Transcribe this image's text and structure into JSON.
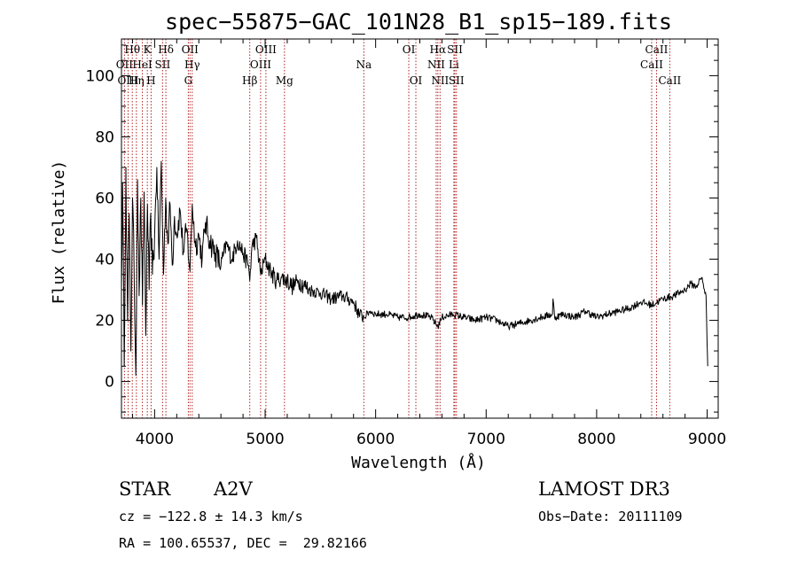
{
  "chart_data": {
    "type": "line",
    "title": "spec−55875−GAC_101N28_B1_sp15−189.fits",
    "xlabel": "Wavelength (Å)",
    "ylabel": "Flux (relative)",
    "xlim": [
      3700,
      9100
    ],
    "ylim": [
      -12,
      112
    ],
    "xticks": [
      4000,
      5000,
      6000,
      7000,
      8000,
      9000
    ],
    "yticks": [
      0,
      20,
      40,
      60,
      80,
      100
    ],
    "series": [
      {
        "name": "flux",
        "x": [
          3700,
          3710,
          3725,
          3740,
          3755,
          3770,
          3785,
          3800,
          3815,
          3830,
          3845,
          3860,
          3875,
          3890,
          3905,
          3920,
          3935,
          3950,
          3965,
          3980,
          4000,
          4020,
          4040,
          4060,
          4080,
          4100,
          4120,
          4140,
          4160,
          4180,
          4200,
          4230,
          4260,
          4290,
          4320,
          4340,
          4370,
          4400,
          4430,
          4460,
          4500,
          4550,
          4600,
          4650,
          4700,
          4750,
          4800,
          4850,
          4861,
          4880,
          4920,
          4960,
          5000,
          5050,
          5100,
          5150,
          5200,
          5250,
          5300,
          5400,
          5500,
          5600,
          5700,
          5800,
          5850,
          5893,
          5950,
          6000,
          6100,
          6200,
          6300,
          6400,
          6500,
          6563,
          6600,
          6700,
          6800,
          6900,
          7000,
          7100,
          7200,
          7300,
          7400,
          7500,
          7600,
          7605,
          7620,
          7700,
          7800,
          7900,
          8000,
          8100,
          8200,
          8300,
          8400,
          8500,
          8600,
          8700,
          8800,
          8850,
          8900,
          8950,
          8990,
          9000,
          9005
        ],
        "y": [
          30,
          65,
          5,
          70,
          20,
          55,
          10,
          60,
          35,
          2,
          66,
          28,
          60,
          25,
          62,
          15,
          58,
          30,
          55,
          35,
          48,
          70,
          40,
          72,
          35,
          60,
          45,
          58,
          38,
          54,
          48,
          56,
          42,
          50,
          36,
          58,
          44,
          48,
          40,
          52,
          46,
          42,
          38,
          45,
          40,
          46,
          42,
          38,
          33,
          44,
          47,
          35,
          40,
          36,
          33,
          34,
          33,
          31,
          33,
          30,
          29,
          27,
          28,
          26,
          22,
          21,
          23,
          22,
          22,
          21,
          21,
          22,
          21,
          18,
          21,
          22,
          21,
          20,
          21,
          20,
          18,
          19,
          20,
          21,
          22,
          27,
          21,
          22,
          21,
          23,
          21,
          22,
          23,
          24,
          26,
          25,
          27,
          28,
          30,
          32,
          31,
          34,
          28,
          12,
          5
        ]
      }
    ],
    "spectral_lines": [
      {
        "label": "Hθ",
        "wl": 3798,
        "row": 0
      },
      {
        "label": "K",
        "wl": 3934,
        "row": 0
      },
      {
        "label": "Hδ",
        "wl": 4102,
        "row": 0
      },
      {
        "label": "OII",
        "wl": 4320,
        "row": 0
      },
      {
        "label": "OIII",
        "wl": 5007,
        "row": 0
      },
      {
        "label": "OI",
        "wl": 6300,
        "row": 0
      },
      {
        "label": "Hα",
        "wl": 6563,
        "row": 0
      },
      {
        "label": "SII",
        "wl": 6717,
        "row": 0
      },
      {
        "label": "CaII",
        "wl": 8542,
        "row": 0
      },
      {
        "label": "OII",
        "wl": 3727,
        "row": 1
      },
      {
        "label": "HeI",
        "wl": 3889,
        "row": 1
      },
      {
        "label": "SII",
        "wl": 4072,
        "row": 1
      },
      {
        "label": "Hγ",
        "wl": 4340,
        "row": 1
      },
      {
        "label": "OIII",
        "wl": 4959,
        "row": 1
      },
      {
        "label": "Na",
        "wl": 5893,
        "row": 1
      },
      {
        "label": "NII",
        "wl": 6548,
        "row": 1
      },
      {
        "label": "Li",
        "wl": 6708,
        "row": 1
      },
      {
        "label": "CaII",
        "wl": 8498,
        "row": 1
      },
      {
        "label": "OIII",
        "wl": 3760,
        "row": 2
      },
      {
        "label": "Hη",
        "wl": 3835,
        "row": 2
      },
      {
        "label": "H",
        "wl": 3968,
        "row": 2
      },
      {
        "label": "G",
        "wl": 4305,
        "row": 2
      },
      {
        "label": "Hβ",
        "wl": 4861,
        "row": 2
      },
      {
        "label": "Mg",
        "wl": 5175,
        "row": 2
      },
      {
        "label": "OI",
        "wl": 6364,
        "row": 2
      },
      {
        "label": "NII",
        "wl": 6583,
        "row": 2
      },
      {
        "label": "SII",
        "wl": 6731,
        "row": 2
      },
      {
        "label": "CaII",
        "wl": 8662,
        "row": 2
      }
    ],
    "line_color": "#000000",
    "marker_color": "#b22222"
  },
  "info": {
    "object_type": "STAR",
    "subclass": "A2V",
    "survey": "LAMOST DR3",
    "velocity": "cz = −122.8 ± 14.3 km/s",
    "obs_date": "Obs−Date: 20111109",
    "coords": "RA = 100.65537, DEC =  29.82166"
  }
}
